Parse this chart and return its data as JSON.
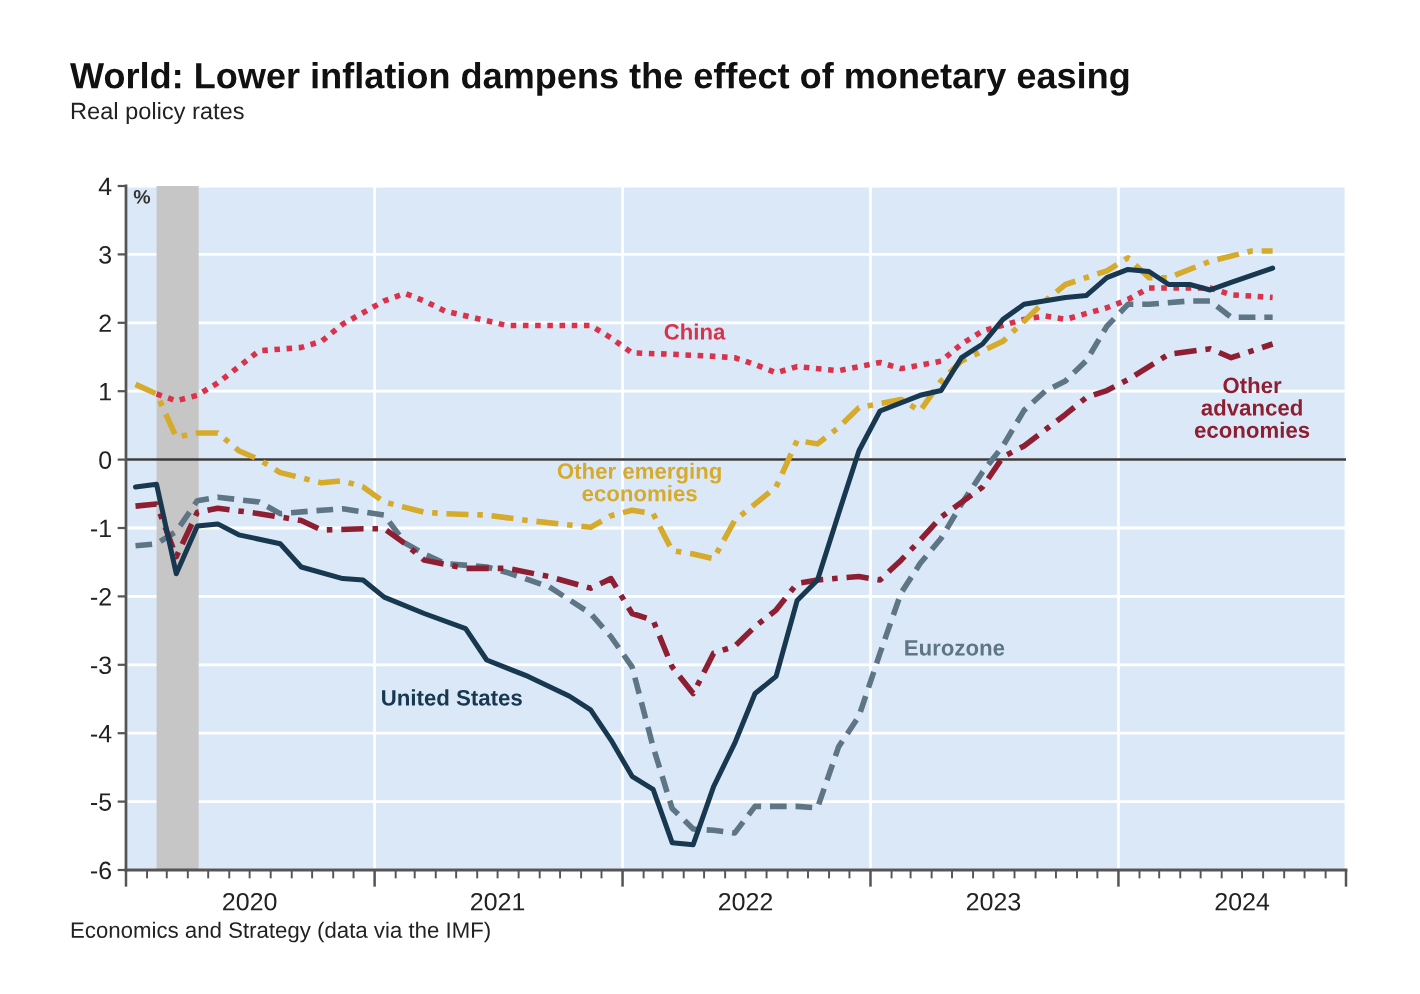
{
  "chart_data": {
    "type": "line",
    "title": "World: Lower inflation dampens the effect of monetary easing",
    "subtitle": "Real policy rates",
    "ylabel": "%",
    "annotations": [
      "Economics and Strategy (data via the IMF)"
    ],
    "xlim": [
      "2020-01-01",
      "2024-12-01"
    ],
    "ylim": [
      -6,
      4
    ],
    "xticks": [
      {
        "value": "2020-01-01",
        "label": null
      },
      {
        "value": "2020-07-01",
        "label": "2020"
      },
      {
        "value": "2021-01-01",
        "label": null
      },
      {
        "value": "2021-07-01",
        "label": "2021"
      },
      {
        "value": "2022-01-01",
        "label": null
      },
      {
        "value": "2022-07-01",
        "label": "2022"
      },
      {
        "value": "2023-01-01",
        "label": null
      },
      {
        "value": "2023-07-01",
        "label": "2023"
      },
      {
        "value": "2024-01-01",
        "label": null
      },
      {
        "value": "2024-07-01",
        "label": "2024"
      },
      {
        "value": "2024-12-01",
        "label": null
      }
    ],
    "yticks": [
      -6,
      -5,
      -4,
      -3,
      -2,
      -1,
      0,
      1,
      2,
      3,
      4
    ],
    "grid": true,
    "ref_lines": [
      {
        "axis": "y",
        "value": 0,
        "color": "#3a3a3a"
      }
    ],
    "bands": [
      {
        "axis": "x",
        "from": "2020-02-15",
        "to": "2020-04-17",
        "color": "#c6c6c6"
      }
    ],
    "series": [
      {
        "name": "China",
        "color": "#d9324a",
        "line_style": "dotted",
        "x": [
          "2020-02-15",
          "2020-03-15",
          "2020-04-15",
          "2020-05-15",
          "2020-07-15",
          "2020-09-15",
          "2020-10-15",
          "2020-11-15",
          "2021-01-15",
          "2021-02-15",
          "2021-03-15",
          "2021-04-15",
          "2021-06-15",
          "2021-07-15",
          "2021-09-15",
          "2021-11-15",
          "2021-12-15",
          "2022-01-15",
          "2022-03-15",
          "2022-05-15",
          "2022-06-15",
          "2022-07-15",
          "2022-08-15",
          "2022-09-15",
          "2022-11-15",
          "2023-01-15",
          "2023-02-15",
          "2023-04-15",
          "2023-05-15",
          "2023-06-15",
          "2023-08-15",
          "2023-09-15",
          "2023-10-15",
          "2023-12-15",
          "2024-01-15",
          "2024-02-15",
          "2024-04-15",
          "2024-05-15",
          "2024-06-15",
          "2024-08-15"
        ],
        "values": [
          0.96,
          0.86,
          0.94,
          1.12,
          1.59,
          1.64,
          1.73,
          1.98,
          2.32,
          2.43,
          2.32,
          2.17,
          2.03,
          1.96,
          1.96,
          1.96,
          1.78,
          1.56,
          1.54,
          1.51,
          1.49,
          1.39,
          1.27,
          1.36,
          1.3,
          1.42,
          1.33,
          1.44,
          1.69,
          1.88,
          2.05,
          2.1,
          2.05,
          2.22,
          2.34,
          2.51,
          2.51,
          2.51,
          2.41,
          2.37
        ]
      },
      {
        "name": "Other emerging\neconomies",
        "color": "#d6aa2a",
        "line_style": "dashdot",
        "x": [
          "2020-01-15",
          "2020-02-15",
          "2020-03-15",
          "2020-04-15",
          "2020-05-15",
          "2020-06-15",
          "2020-07-15",
          "2020-08-15",
          "2020-10-15",
          "2020-11-15",
          "2020-12-15",
          "2021-01-15",
          "2021-03-15",
          "2021-04-15",
          "2021-06-15",
          "2021-08-15",
          "2021-11-15",
          "2021-12-15",
          "2022-01-15",
          "2022-02-15",
          "2022-03-15",
          "2022-04-15",
          "2022-05-15",
          "2022-06-15",
          "2022-08-15",
          "2022-09-15",
          "2022-10-15",
          "2022-11-15",
          "2022-12-15",
          "2023-02-15",
          "2023-03-15",
          "2023-04-15",
          "2023-05-15",
          "2023-07-15",
          "2023-09-15",
          "2023-10-15",
          "2023-12-15",
          "2024-01-15",
          "2024-02-15",
          "2024-03-15",
          "2024-05-15",
          "2024-07-15",
          "2024-08-15"
        ],
        "values": [
          1.1,
          0.96,
          0.33,
          0.39,
          0.39,
          0.13,
          0.0,
          -0.19,
          -0.34,
          -0.31,
          -0.4,
          -0.62,
          -0.77,
          -0.79,
          -0.81,
          -0.89,
          -0.99,
          -0.82,
          -0.74,
          -0.79,
          -1.33,
          -1.38,
          -1.45,
          -0.89,
          -0.4,
          0.28,
          0.23,
          0.47,
          0.76,
          0.88,
          0.71,
          1.15,
          1.44,
          1.73,
          2.32,
          2.56,
          2.76,
          2.95,
          2.66,
          2.66,
          2.9,
          3.05,
          3.05
        ]
      },
      {
        "name": "Eurozone",
        "color": "#5e7586",
        "line_style": "dashed",
        "x": [
          "2020-01-15",
          "2020-02-15",
          "2020-03-15",
          "2020-04-15",
          "2020-05-15",
          "2020-07-15",
          "2020-08-15",
          "2020-10-15",
          "2020-11-15",
          "2021-01-15",
          "2021-02-15",
          "2021-03-15",
          "2021-04-15",
          "2021-06-15",
          "2021-07-15",
          "2021-09-15",
          "2021-11-15",
          "2021-12-15",
          "2022-01-15",
          "2022-02-15",
          "2022-03-15",
          "2022-04-15",
          "2022-05-15",
          "2022-06-15",
          "2022-07-15",
          "2022-09-15",
          "2022-10-15",
          "2022-11-15",
          "2022-12-15",
          "2023-01-15",
          "2023-02-15",
          "2023-03-15",
          "2023-04-15",
          "2023-05-15",
          "2023-06-15",
          "2023-07-15",
          "2023-08-15",
          "2023-09-15",
          "2023-10-15",
          "2023-11-15",
          "2023-12-15",
          "2024-01-15",
          "2024-02-15",
          "2024-04-15",
          "2024-05-15",
          "2024-06-15",
          "2024-08-15"
        ],
        "values": [
          -1.26,
          -1.23,
          -1.05,
          -0.6,
          -0.55,
          -0.62,
          -0.79,
          -0.74,
          -0.72,
          -0.81,
          -1.22,
          -1.38,
          -1.52,
          -1.57,
          -1.65,
          -1.86,
          -2.25,
          -2.59,
          -3.03,
          -4.2,
          -5.1,
          -5.4,
          -5.42,
          -5.46,
          -5.07,
          -5.07,
          -5.09,
          -4.2,
          -3.75,
          -2.83,
          -1.95,
          -1.52,
          -1.15,
          -0.65,
          -0.18,
          0.2,
          0.72,
          1.0,
          1.15,
          1.45,
          1.95,
          2.27,
          2.27,
          2.32,
          2.32,
          2.08,
          2.08
        ]
      },
      {
        "name": "Other\nadvanced\neconomies",
        "color": "#8e1f33",
        "line_style": "dashdot",
        "x": [
          "2020-01-15",
          "2020-02-15",
          "2020-03-15",
          "2020-04-15",
          "2020-05-15",
          "2020-07-15",
          "2020-09-15",
          "2020-10-15",
          "2020-12-15",
          "2021-01-15",
          "2021-02-15",
          "2021-03-15",
          "2021-05-15",
          "2021-07-15",
          "2021-09-15",
          "2021-11-15",
          "2021-12-15",
          "2022-01-15",
          "2022-02-15",
          "2022-03-15",
          "2022-04-15",
          "2022-05-15",
          "2022-06-15",
          "2022-07-15",
          "2022-08-15",
          "2022-09-15",
          "2022-10-15",
          "2022-12-15",
          "2023-01-15",
          "2023-02-15",
          "2023-03-15",
          "2023-04-15",
          "2023-06-15",
          "2023-07-15",
          "2023-08-15",
          "2023-10-15",
          "2023-11-15",
          "2023-12-15",
          "2024-01-15",
          "2024-03-15",
          "2024-05-15",
          "2024-06-15",
          "2024-08-15"
        ],
        "values": [
          -0.68,
          -0.65,
          -1.42,
          -0.77,
          -0.71,
          -0.79,
          -0.89,
          -1.03,
          -1.01,
          -1.01,
          -1.23,
          -1.47,
          -1.59,
          -1.59,
          -1.71,
          -1.88,
          -1.74,
          -2.25,
          -2.35,
          -3.03,
          -3.42,
          -2.83,
          -2.73,
          -2.44,
          -2.2,
          -1.81,
          -1.76,
          -1.71,
          -1.76,
          -1.47,
          -1.18,
          -0.84,
          -0.4,
          0.04,
          0.2,
          0.66,
          0.91,
          1.01,
          1.17,
          1.54,
          1.62,
          1.49,
          1.69
        ]
      },
      {
        "name": "United States",
        "color": "#17384f",
        "line_style": "solid",
        "x": [
          "2020-01-15",
          "2020-02-15",
          "2020-03-15",
          "2020-04-15",
          "2020-05-15",
          "2020-06-15",
          "2020-08-15",
          "2020-09-15",
          "2020-11-15",
          "2020-12-15",
          "2021-01-15",
          "2021-03-15",
          "2021-05-15",
          "2021-06-15",
          "2021-08-15",
          "2021-10-15",
          "2021-11-15",
          "2021-12-15",
          "2022-01-15",
          "2022-02-15",
          "2022-03-15",
          "2022-04-15",
          "2022-05-15",
          "2022-06-15",
          "2022-07-15",
          "2022-08-15",
          "2022-09-15",
          "2022-10-15",
          "2022-11-15",
          "2022-12-15",
          "2023-01-15",
          "2023-03-15",
          "2023-04-15",
          "2023-05-15",
          "2023-06-15",
          "2023-07-15",
          "2023-08-15",
          "2023-10-15",
          "2023-11-15",
          "2023-12-15",
          "2024-01-15",
          "2024-02-15",
          "2024-03-15",
          "2024-04-15",
          "2024-05-15",
          "2024-06-15",
          "2024-08-15"
        ],
        "values": [
          -0.4,
          -0.36,
          -1.67,
          -0.97,
          -0.94,
          -1.1,
          -1.23,
          -1.57,
          -1.74,
          -1.76,
          -2.01,
          -2.25,
          -2.47,
          -2.93,
          -3.17,
          -3.46,
          -3.66,
          -4.1,
          -4.63,
          -4.82,
          -5.6,
          -5.63,
          -4.78,
          -4.15,
          -3.42,
          -3.17,
          -2.06,
          -1.76,
          -0.79,
          0.13,
          0.71,
          0.94,
          1.01,
          1.49,
          1.69,
          2.05,
          2.27,
          2.37,
          2.4,
          2.66,
          2.78,
          2.75,
          2.56,
          2.56,
          2.48,
          2.59,
          2.8
        ]
      }
    ]
  }
}
